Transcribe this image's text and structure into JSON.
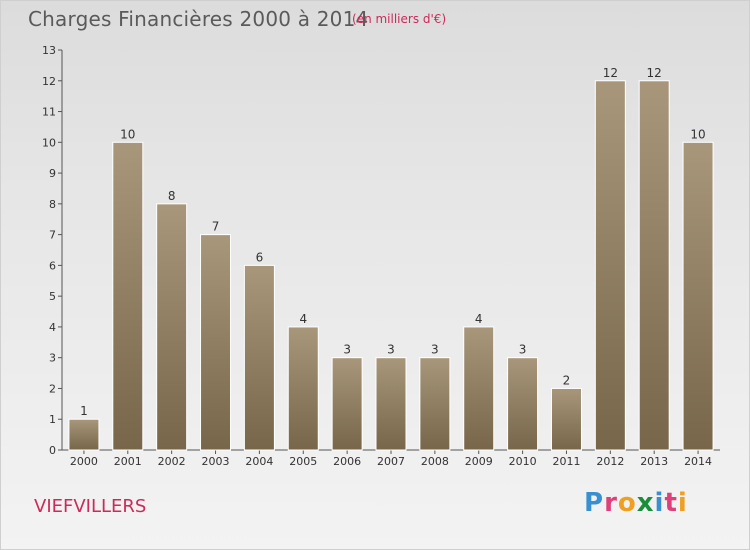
{
  "header": {
    "title": "Charges Financières 2000 à 2014",
    "subtitle": "(en milliers d'€)"
  },
  "footer": {
    "commune": "VIEFVILLERS",
    "logo_text": "Proxiti"
  },
  "colors": {
    "bar_light": "#a8977a",
    "bar_dark": "#77664a",
    "accent": "#cc2a5a"
  },
  "chart_data": {
    "type": "bar",
    "title": "Charges Financières 2000 à 2014",
    "subtitle": "(en milliers d'€)",
    "categories": [
      "2000",
      "2001",
      "2002",
      "2003",
      "2004",
      "2005",
      "2006",
      "2007",
      "2008",
      "2009",
      "2010",
      "2011",
      "2012",
      "2013",
      "2014"
    ],
    "values": [
      1,
      10,
      8,
      7,
      6,
      4,
      3,
      3,
      3,
      4,
      3,
      2,
      12,
      12,
      10
    ],
    "ylim": [
      0,
      13
    ],
    "yticks": [
      0,
      1,
      2,
      3,
      4,
      5,
      6,
      7,
      8,
      9,
      10,
      11,
      12,
      13
    ],
    "grid": false,
    "legend": "none"
  }
}
